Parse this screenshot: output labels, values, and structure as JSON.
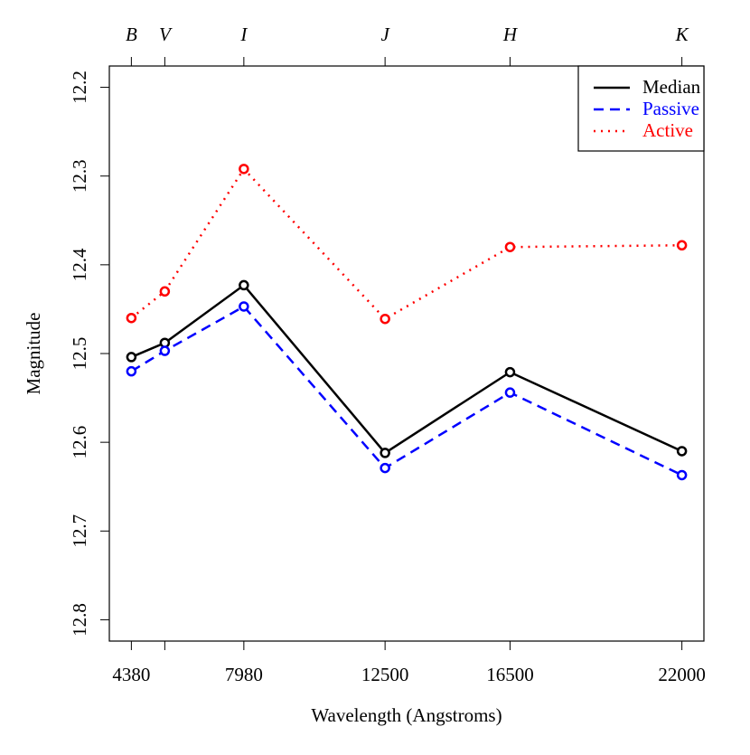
{
  "chart_data": {
    "type": "line",
    "xlabel": "Wavelength (Angstroms)",
    "ylabel": "Magnitude",
    "x": [
      4380,
      5450,
      7980,
      12500,
      16500,
      22000
    ],
    "series": [
      {
        "name": "Median",
        "color": "#000000",
        "dash": "solid",
        "values": [
          12.504,
          12.488,
          12.423,
          12.612,
          12.521,
          12.61
        ]
      },
      {
        "name": "Passive",
        "color": "#0000ff",
        "dash": "dashed",
        "values": [
          12.52,
          12.497,
          12.447,
          12.629,
          12.544,
          12.637
        ]
      },
      {
        "name": "Active",
        "color": "#ff0000",
        "dash": "dotted",
        "values": [
          12.46,
          12.43,
          12.292,
          12.461,
          12.38,
          12.378
        ]
      }
    ],
    "xlim": [
      3675,
      22705
    ],
    "ylim": [
      12.824,
      12.176
    ],
    "xticks": [
      4380,
      {
        "value": 5450,
        "label": null
      },
      7980,
      12500,
      16500,
      22000
    ],
    "top_ticks": [
      {
        "value": 4380,
        "label": "B"
      },
      {
        "value": 5450,
        "label": "V"
      },
      {
        "value": 7980,
        "label": "I"
      },
      {
        "value": 12500,
        "label": "J"
      },
      {
        "value": 16500,
        "label": "H"
      },
      {
        "value": 22000,
        "label": "K"
      }
    ],
    "yticks": [
      12.2,
      12.3,
      12.4,
      12.5,
      12.6,
      12.7,
      12.8
    ],
    "legend": "top-right"
  }
}
